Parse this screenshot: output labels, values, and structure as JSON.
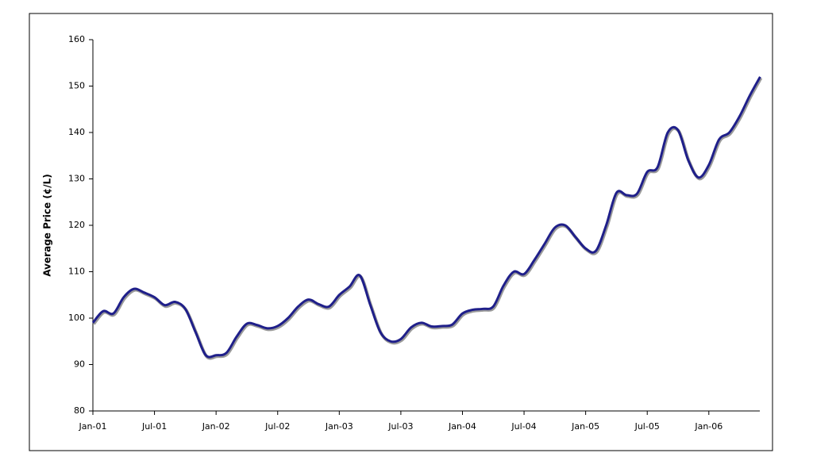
{
  "chart_data": {
    "type": "line",
    "y_label": "Average Price (¢/L)",
    "categories": [
      "Jan-01",
      null,
      null,
      null,
      null,
      null,
      "Jul-01",
      null,
      null,
      null,
      null,
      null,
      "Jan-02",
      null,
      null,
      null,
      null,
      null,
      "Jul-02",
      null,
      null,
      null,
      null,
      null,
      "Jan-03",
      null,
      null,
      null,
      null,
      null,
      "Jul-03",
      null,
      null,
      null,
      null,
      null,
      "Jan-04",
      null,
      null,
      null,
      null,
      null,
      "Jul-04",
      null,
      null,
      null,
      null,
      null,
      "Jan-05",
      null,
      null,
      null,
      null,
      null,
      "Jul-05",
      null,
      null,
      null,
      null,
      null,
      "Jan-06",
      null,
      null,
      null,
      null,
      null
    ],
    "series": [
      {
        "name": "Average Price",
        "color": "#1f1f8a",
        "values": [
          99,
          101.5,
          101,
          104.5,
          106.3,
          105.5,
          104.5,
          102.8,
          103.5,
          102,
          97,
          92,
          92,
          92.5,
          96,
          98.8,
          98.5,
          97.8,
          98.3,
          100,
          102.5,
          104,
          103,
          102.5,
          105,
          106.8,
          109.2,
          103,
          97,
          95,
          95.5,
          98,
          99,
          98.2,
          98.3,
          98.6,
          101,
          101.8,
          102,
          102.5,
          107,
          110,
          109.5,
          112.5,
          116,
          119.5,
          120,
          117.5,
          115,
          114.5,
          120,
          127,
          126.5,
          126.8,
          131.5,
          132.5,
          140,
          140.5,
          134,
          130.3,
          133,
          138.5,
          140,
          143.5,
          148,
          152
        ]
      }
    ],
    "ylim": [
      80,
      160
    ],
    "yticks": [
      80,
      90,
      100,
      110,
      120,
      130,
      140,
      150,
      160
    ],
    "grid": false
  }
}
